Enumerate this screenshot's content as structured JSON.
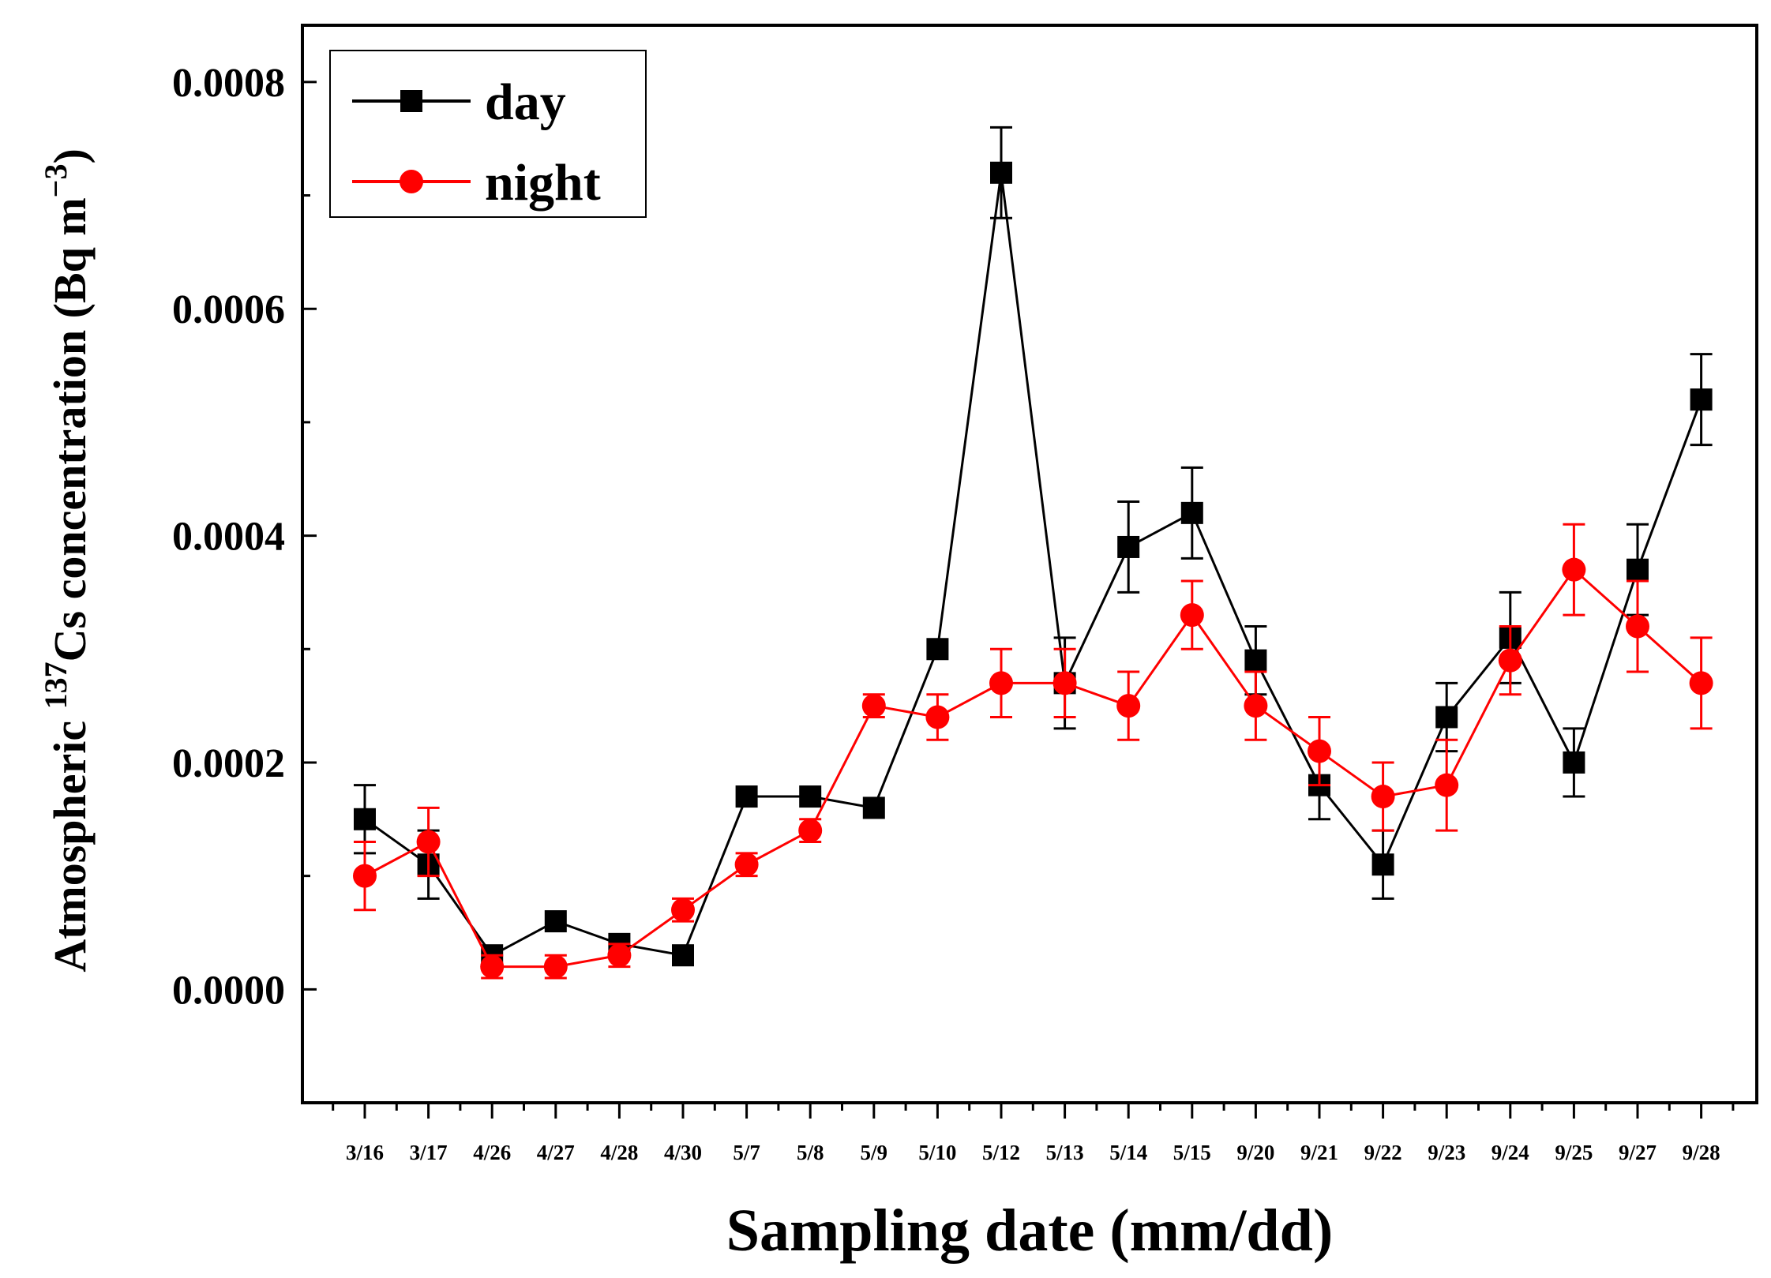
{
  "chart_data": {
    "type": "line",
    "title": "",
    "xlabel": "Sampling date (mm/dd)",
    "ylabel": {
      "prefix": "Atmospheric ",
      "isotope_mass": "137",
      "element": "Cs concentration (Bq m",
      "exponent": "−3",
      "suffix": ")"
    },
    "categories": [
      "3/16",
      "3/17",
      "4/26",
      "4/27",
      "4/28",
      "4/30",
      "5/7",
      "5/8",
      "5/9",
      "5/10",
      "5/12",
      "5/13",
      "5/14",
      "5/15",
      "9/20",
      "9/21",
      "9/22",
      "9/23",
      "9/24",
      "9/25",
      "9/27",
      "9/28"
    ],
    "extra_xtick_label": "–",
    "ylim": [
      -0.0001,
      0.00085
    ],
    "yticks": [
      0.0,
      0.0002,
      0.0004,
      0.0006,
      0.0008
    ],
    "ytick_labels": [
      "0.0000",
      "0.0002",
      "0.0004",
      "0.0006",
      "0.0008"
    ],
    "grid": false,
    "legend_position": "top-left",
    "series": [
      {
        "name": "day",
        "color": "#000000",
        "marker": "square",
        "values": [
          0.00015,
          0.00011,
          3e-05,
          6e-05,
          4e-05,
          3e-05,
          0.00017,
          0.00017,
          0.00016,
          0.0003,
          0.00072,
          0.00027,
          0.00039,
          0.00042,
          0.00029,
          0.00018,
          0.00011,
          0.00024,
          0.00031,
          0.0002,
          0.00037,
          0.00052
        ],
        "errors": [
          3e-05,
          3e-05,
          0.0,
          0.0,
          0.0,
          0.0,
          0.0,
          0.0,
          0.0,
          0.0,
          4e-05,
          4e-05,
          4e-05,
          4e-05,
          3e-05,
          3e-05,
          3e-05,
          3e-05,
          4e-05,
          3e-05,
          4e-05,
          4e-05
        ]
      },
      {
        "name": "night",
        "color": "#ff0000",
        "marker": "circle",
        "values": [
          0.0001,
          0.00013,
          2e-05,
          2e-05,
          3e-05,
          7e-05,
          0.00011,
          0.00014,
          0.00025,
          0.00024,
          0.00027,
          0.00027,
          0.00025,
          0.00033,
          0.00025,
          0.00021,
          0.00017,
          0.00018,
          0.00029,
          0.00037,
          0.00032,
          0.00027
        ],
        "errors": [
          3e-05,
          3e-05,
          1e-05,
          1e-05,
          1e-05,
          1e-05,
          1e-05,
          1e-05,
          1e-05,
          2e-05,
          3e-05,
          3e-05,
          3e-05,
          3e-05,
          3e-05,
          3e-05,
          3e-05,
          4e-05,
          3e-05,
          4e-05,
          4e-05,
          4e-05
        ]
      }
    ]
  }
}
